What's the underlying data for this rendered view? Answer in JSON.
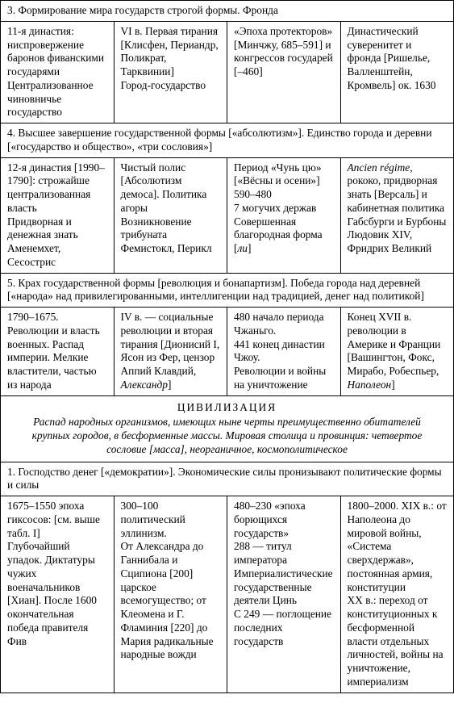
{
  "sections": [
    {
      "header": "3. Формирование мира государств строгой формы. Фронда",
      "cells": [
        "11-я династия: ниспровержение баронов фиванскими государями\nЦентрализованное чиновничье государство",
        "VI в. Первая тирания [Клисфен, Периандр, Поликрат, Тарквинии]\nГород-государство",
        "«Эпоха протекторов» [Минчжу, 685–591] и конгрессов государей [–460]",
        "Династический суверенитет и фронда [Ришелье, Валленштейн, Кромвель] ок. 1630"
      ]
    },
    {
      "header": "4.  Высшее завершение государственной формы [«абсолютизм»]. Единство города и деревни [«государство и общество», «три сословия»]",
      "cells": [
        "12-я династия [1990–1790]: строжайше централизованная власть\nПридворная и денежная знать\nАменемхет, Сесострис",
        "Чистый полис [Абсолютизм демоса]. Политика агоры\nВозникновение трибуната\nФемистокл, Перикл",
        "Период «Чунь цю» [«Вёсны и осени»] 590–480\n7 могучих держав\nСовершенная благородная форма [ли]",
        "Ancien régime, рококо, придворная знать [Версаль] и кабинетная политика\nГабсбурги и Бурбоны\nЛюдовик XIV, Фридрих Великий"
      ]
    },
    {
      "header": "5.  Крах государственной формы [революция и бонапартизм]. Победа города над деревней [«народа» над привилегированными, интеллигенции над традицией, денег над политикой]",
      "cells": [
        "1790–1675. Революции и власть военных. Распад империи. Мелкие властители, частью из народа",
        "IV в. — социальные революции и вторая тирания [Дионисий I, Ясон из Фер, цензор Аппий Клавдий, Александр]",
        "480 начало периода Чжаньго.\n441 конец династии Чжоу.\nРеволюции и войны на уничтожение",
        "Конец XVII в. революции в Америке и Франции [Вашингтон, Фокс, Мирабо, Робеспьер, Наполеон]"
      ]
    }
  ],
  "civ": {
    "title": "ЦИВИЛИЗАЦИЯ",
    "desc": "Распад народных организмов, имеющих ныне черты преимущественно обитателей крупных городов, в бесформенные массы. Мировая столица и провинция: четвертое сословие [масса], неорганичное, космополитическое"
  },
  "post": [
    {
      "header": "1.  Господство денег [«демократии»]. Экономические силы пронизывают политические формы и силы",
      "cells": [
        "1675–1550 эпоха гиксосов: [см. выше табл. I]\nГлубочайший упадок. Диктатуры чужих военачальников [Хиан]. После 1600 окончательная победа правителя Фив",
        "300–100 политический эллинизм.\nОт Александра до Ганнибала и Сципиона [200] царское всемогущество; от Клеомена и Г. Фламиния [220] до Мария радикальные народные вожди",
        "480–230 «эпоха борющихся государств»\n288 — титул императора\nИмпериалистические государственные деятели Цинь\nС 249 — поглощение последних государств",
        "1800–2000. XIX в.: от Наполеона до мировой войны, «Система сверхдержав», постоянная армия, конституции\nXX в.: переход от конституционных к бесформенной власти отдельных личностей, войны на уничтожение, империализм"
      ]
    }
  ]
}
